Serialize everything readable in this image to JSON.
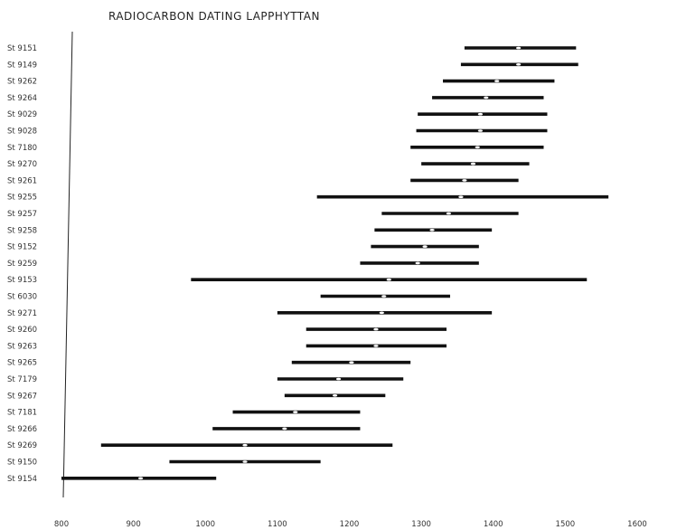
{
  "chart_data": {
    "type": "range",
    "title": "RADIOCARBON DATING LAPPHYTTAN",
    "xlabel": "",
    "ylabel": "",
    "xlim": [
      800,
      1600
    ],
    "x_ticks": [
      "800",
      "900",
      "1000",
      "1100",
      "1200",
      "1300",
      "1400",
      "1500",
      "1600"
    ],
    "grid": false,
    "series": [
      {
        "label": "St 9151",
        "low": 1360,
        "high": 1515,
        "mid": 1435
      },
      {
        "label": "St 9149",
        "low": 1355,
        "high": 1518,
        "mid": 1435
      },
      {
        "label": "St 9262",
        "low": 1330,
        "high": 1485,
        "mid": 1405
      },
      {
        "label": "St 9264",
        "low": 1315,
        "high": 1470,
        "mid": 1390
      },
      {
        "label": "St 9029",
        "low": 1295,
        "high": 1475,
        "mid": 1382
      },
      {
        "label": "St 9028",
        "low": 1293,
        "high": 1475,
        "mid": 1382
      },
      {
        "label": "St 7180",
        "low": 1285,
        "high": 1470,
        "mid": 1378
      },
      {
        "label": "St 9270",
        "low": 1300,
        "high": 1450,
        "mid": 1372
      },
      {
        "label": "St 9261",
        "low": 1285,
        "high": 1435,
        "mid": 1360
      },
      {
        "label": "St 9255",
        "low": 1155,
        "high": 1560,
        "mid": 1355
      },
      {
        "label": "St 9257",
        "low": 1245,
        "high": 1435,
        "mid": 1338
      },
      {
        "label": "St 9258",
        "low": 1235,
        "high": 1398,
        "mid": 1315
      },
      {
        "label": "St 9152",
        "low": 1230,
        "high": 1380,
        "mid": 1305
      },
      {
        "label": "St 9259",
        "low": 1215,
        "high": 1380,
        "mid": 1295
      },
      {
        "label": "St 9153",
        "low": 980,
        "high": 1530,
        "mid": 1255
      },
      {
        "label": "St 6030",
        "low": 1160,
        "high": 1340,
        "mid": 1248
      },
      {
        "label": "St 9271",
        "low": 1100,
        "high": 1398,
        "mid": 1245
      },
      {
        "label": "St 9260",
        "low": 1140,
        "high": 1335,
        "mid": 1237
      },
      {
        "label": "St 9263",
        "low": 1140,
        "high": 1335,
        "mid": 1237
      },
      {
        "label": "St 9265",
        "low": 1120,
        "high": 1285,
        "mid": 1203
      },
      {
        "label": "St 7179",
        "low": 1100,
        "high": 1275,
        "mid": 1185
      },
      {
        "label": "St 9267",
        "low": 1110,
        "high": 1250,
        "mid": 1180
      },
      {
        "label": "St 7181",
        "low": 1038,
        "high": 1215,
        "mid": 1125
      },
      {
        "label": "St 9266",
        "low": 1010,
        "high": 1215,
        "mid": 1110
      },
      {
        "label": "St 9269",
        "low": 855,
        "high": 1260,
        "mid": 1055
      },
      {
        "label": "St 9150",
        "low": 950,
        "high": 1160,
        "mid": 1055
      },
      {
        "label": "St 9154",
        "low": 800,
        "high": 1015,
        "mid": 910
      }
    ]
  }
}
